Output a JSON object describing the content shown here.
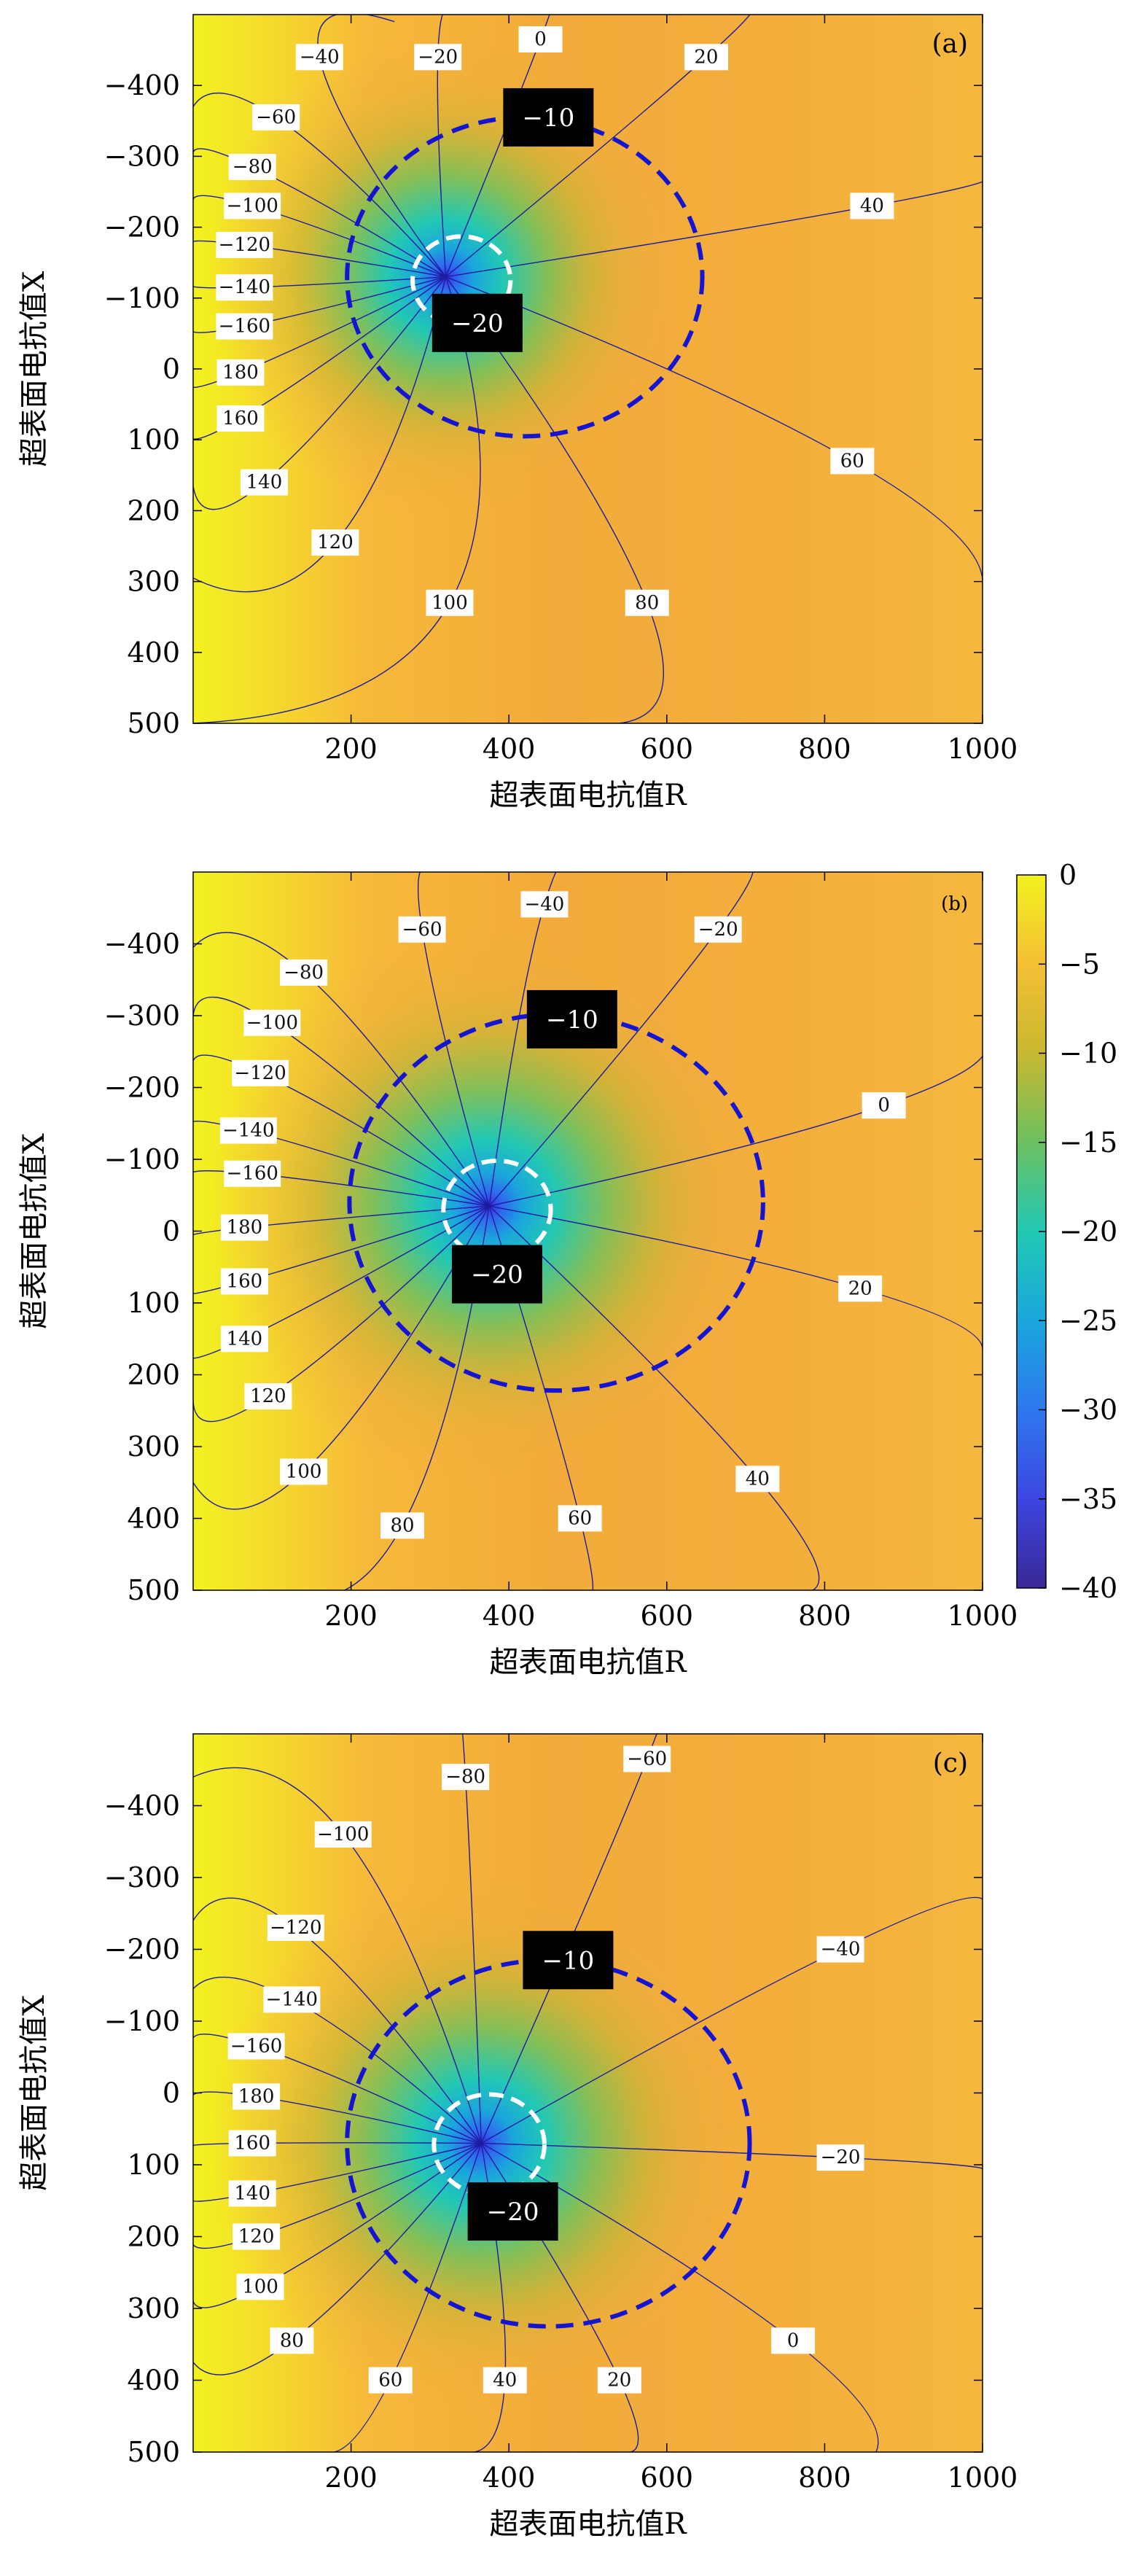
{
  "figure": {
    "panel_labels": [
      "(a)",
      "(b)",
      "(c)"
    ],
    "x_axis_label": "超表面电抗值R",
    "y_axis_label": "超表面电抗值X",
    "colors": {
      "field_high": "#f2f21e",
      "field_mid": "#f4b43a",
      "field_low_cyan": "#22c8b4",
      "field_center": "#3c28e6",
      "contour_line": "#1c1c9e",
      "dashed_blue": "#1414d2",
      "dashed_white": "#ffffff"
    }
  },
  "colorbar": {
    "range": [
      -40,
      0
    ],
    "tick_labels": [
      "0",
      "−5",
      "−10",
      "−15",
      "−20",
      "−25",
      "−30",
      "−35",
      "−40"
    ],
    "tick_values": [
      0,
      -5,
      -10,
      -15,
      -20,
      -25,
      -30,
      -35,
      -40
    ]
  },
  "chart_data": [
    {
      "type": "heatmap",
      "panel": "(a)",
      "xlim": [
        0,
        1000
      ],
      "ylim": [
        -500,
        500
      ],
      "y_inverted": true,
      "x_ticks": [
        "200",
        "400",
        "600",
        "800",
        "1000"
      ],
      "x_tick_values": [
        200,
        400,
        600,
        800,
        1000
      ],
      "y_ticks": [
        "−400",
        "−300",
        "−200",
        "−100",
        "0",
        "100",
        "200",
        "300",
        "400",
        "500"
      ],
      "y_tick_values": [
        -400,
        -300,
        -200,
        -100,
        0,
        100,
        200,
        300,
        400,
        500
      ],
      "singularity": {
        "R": 320,
        "X": -130
      },
      "circle_minus10": {
        "center_R": 420,
        "center_X": -130,
        "radius_R": 225,
        "radius_X": 225
      },
      "circle_minus20": {
        "center_R": 340,
        "center_X": -125,
        "radius_R": 62,
        "radius_X": 62
      },
      "boxed_labels": [
        {
          "text": "−10",
          "R": 450,
          "X": -355
        },
        {
          "text": "−20",
          "R": 360,
          "X": -65
        }
      ],
      "phase_lines": [
        {
          "label": "0",
          "end_R": 445,
          "end_X": -500,
          "label_R": 440,
          "label_X": -465
        },
        {
          "label": "−20",
          "end_R": 330,
          "end_X": -500,
          "label_R": 310,
          "label_X": -440
        },
        {
          "label": "−40",
          "end_R": 255,
          "end_X": -490,
          "label_R": 160,
          "label_X": -440
        },
        {
          "label": "−60",
          "end_R": 0,
          "end_X": -370,
          "label_R": 105,
          "label_X": -355
        },
        {
          "label": "−80",
          "end_R": 0,
          "end_X": -300,
          "label_R": 75,
          "label_X": -285
        },
        {
          "label": "−100",
          "end_R": 0,
          "end_X": -235,
          "label_R": 75,
          "label_X": -230
        },
        {
          "label": "−120",
          "end_R": 0,
          "end_X": -175,
          "label_R": 65,
          "label_X": -175
        },
        {
          "label": "−140",
          "end_R": 0,
          "end_X": -120,
          "label_R": 65,
          "label_X": -115
        },
        {
          "label": "−160",
          "end_R": 0,
          "end_X": -60,
          "label_R": 65,
          "label_X": -60
        },
        {
          "label": "180",
          "end_R": 0,
          "end_X": 15,
          "label_R": 60,
          "label_X": 5
        },
        {
          "label": "160",
          "end_R": 0,
          "end_X": 80,
          "label_R": 60,
          "label_X": 70
        },
        {
          "label": "140",
          "end_R": 0,
          "end_X": 165,
          "label_R": 90,
          "label_X": 160
        },
        {
          "label": "120",
          "end_R": 0,
          "end_X": 295,
          "label_R": 180,
          "label_X": 245
        },
        {
          "label": "100",
          "end_R": 0,
          "end_X": 500,
          "label_R": 325,
          "label_X": 330
        },
        {
          "label": "80",
          "end_R": 540,
          "end_X": 500,
          "label_R": 575,
          "label_X": 330
        },
        {
          "label": "60",
          "end_R": 1000,
          "end_X": 305,
          "label_R": 835,
          "label_X": 130
        },
        {
          "label": "40",
          "end_R": 1000,
          "end_X": -270,
          "label_R": 860,
          "label_X": -230
        },
        {
          "label": "20",
          "end_R": 690,
          "end_X": -500,
          "label_R": 650,
          "label_X": -440
        }
      ]
    },
    {
      "type": "heatmap",
      "panel": "(b)",
      "xlim": [
        0,
        1000
      ],
      "ylim": [
        -500,
        500
      ],
      "y_inverted": true,
      "x_ticks": [
        "200",
        "400",
        "600",
        "800",
        "1000"
      ],
      "x_tick_values": [
        200,
        400,
        600,
        800,
        1000
      ],
      "y_ticks": [
        "−400",
        "−300",
        "−200",
        "−100",
        "0",
        "100",
        "200",
        "300",
        "400",
        "500"
      ],
      "y_tick_values": [
        -400,
        -300,
        -200,
        -100,
        0,
        100,
        200,
        300,
        400,
        500
      ],
      "singularity": {
        "R": 375,
        "X": -35
      },
      "circle_minus10": {
        "center_R": 460,
        "center_X": -40,
        "radius_R": 262,
        "radius_X": 262
      },
      "circle_minus20": {
        "center_R": 385,
        "center_X": -30,
        "radius_R": 68,
        "radius_X": 68
      },
      "boxed_labels": [
        {
          "text": "−10",
          "R": 480,
          "X": -295
        },
        {
          "text": "−20",
          "R": 385,
          "X": 60
        }
      ],
      "phase_lines": [
        {
          "label": "−40",
          "end_R": 500,
          "end_X": -500,
          "label_R": 445,
          "label_X": -455
        },
        {
          "label": "−60",
          "end_R": 310,
          "end_X": -500,
          "label_R": 290,
          "label_X": -420
        },
        {
          "label": "−20",
          "end_R": 685,
          "end_X": -500,
          "label_R": 665,
          "label_X": -420
        },
        {
          "label": "−80",
          "end_R": 0,
          "end_X": -395,
          "label_R": 140,
          "label_X": -360
        },
        {
          "label": "−100",
          "end_R": 0,
          "end_X": -300,
          "label_R": 100,
          "label_X": -290
        },
        {
          "label": "−120",
          "end_R": 0,
          "end_X": -225,
          "label_R": 85,
          "label_X": -220
        },
        {
          "label": "−140",
          "end_R": 0,
          "end_X": -140,
          "label_R": 70,
          "label_X": -140
        },
        {
          "label": "−160",
          "end_R": 0,
          "end_X": -75,
          "label_R": 75,
          "label_X": -80
        },
        {
          "label": "180",
          "end_R": 0,
          "end_X": 10,
          "label_R": 65,
          "label_X": -5
        },
        {
          "label": "160",
          "end_R": 0,
          "end_X": 80,
          "label_R": 65,
          "label_X": 70
        },
        {
          "label": "140",
          "end_R": 0,
          "end_X": 160,
          "label_R": 65,
          "label_X": 150
        },
        {
          "label": "120",
          "end_R": 0,
          "end_X": 235,
          "label_R": 95,
          "label_X": 230
        },
        {
          "label": "100",
          "end_R": 0,
          "end_X": 350,
          "label_R": 140,
          "label_X": 335
        },
        {
          "label": "80",
          "end_R": 110,
          "end_X": 500,
          "label_R": 265,
          "label_X": 410
        },
        {
          "label": "60",
          "end_R": 495,
          "end_X": 500,
          "label_R": 490,
          "label_X": 400
        },
        {
          "label": "40",
          "end_R": 785,
          "end_X": 500,
          "label_R": 715,
          "label_X": 345
        },
        {
          "label": "20",
          "end_R": 1000,
          "end_X": 165,
          "label_R": 845,
          "label_X": 80
        },
        {
          "label": "0",
          "end_R": 1000,
          "end_X": -270,
          "label_R": 875,
          "label_X": -175
        }
      ]
    },
    {
      "type": "heatmap",
      "panel": "(c)",
      "xlim": [
        0,
        1000
      ],
      "ylim": [
        -500,
        500
      ],
      "y_inverted": true,
      "x_ticks": [
        "200",
        "400",
        "600",
        "800",
        "1000"
      ],
      "x_tick_values": [
        200,
        400,
        600,
        800,
        1000
      ],
      "y_ticks": [
        "−400",
        "−300",
        "−200",
        "−100",
        "0",
        "100",
        "200",
        "300",
        "400",
        "500"
      ],
      "y_tick_values": [
        -400,
        -300,
        -200,
        -100,
        0,
        100,
        200,
        300,
        400,
        500
      ],
      "singularity": {
        "R": 365,
        "X": 70
      },
      "circle_minus10": {
        "center_R": 450,
        "center_X": 70,
        "radius_R": 255,
        "radius_X": 255
      },
      "circle_minus20": {
        "center_R": 375,
        "center_X": 72,
        "radius_R": 70,
        "radius_X": 70
      },
      "boxed_labels": [
        {
          "text": "−10",
          "R": 475,
          "X": -185
        },
        {
          "text": "−20",
          "R": 405,
          "X": 165
        }
      ],
      "phase_lines": [
        {
          "label": "−80",
          "end_R": 335,
          "end_X": -500,
          "label_R": 345,
          "label_X": -440
        },
        {
          "label": "−60",
          "end_R": 570,
          "end_X": -500,
          "label_R": 575,
          "label_X": -465
        },
        {
          "label": "−100",
          "end_R": 0,
          "end_X": -440,
          "label_R": 190,
          "label_X": -360
        },
        {
          "label": "−120",
          "end_R": 0,
          "end_X": -240,
          "label_R": 130,
          "label_X": -230
        },
        {
          "label": "−140",
          "end_R": 0,
          "end_X": -145,
          "label_R": 125,
          "label_X": -130
        },
        {
          "label": "−160",
          "end_R": 0,
          "end_X": -65,
          "label_R": 80,
          "label_X": -65
        },
        {
          "label": "180",
          "end_R": 0,
          "end_X": 10,
          "label_R": 80,
          "label_X": 5
        },
        {
          "label": "160",
          "end_R": 0,
          "end_X": 75,
          "label_R": 75,
          "label_X": 70
        },
        {
          "label": "140",
          "end_R": 0,
          "end_X": 145,
          "label_R": 75,
          "label_X": 140
        },
        {
          "label": "120",
          "end_R": 0,
          "end_X": 200,
          "label_R": 80,
          "label_X": 200
        },
        {
          "label": "100",
          "end_R": 0,
          "end_X": 280,
          "label_R": 85,
          "label_X": 270
        },
        {
          "label": "80",
          "end_R": 0,
          "end_X": 375,
          "label_R": 125,
          "label_X": 345
        },
        {
          "label": "60",
          "end_R": 170,
          "end_X": 500,
          "label_R": 250,
          "label_X": 400
        },
        {
          "label": "40",
          "end_R": 345,
          "end_X": 500,
          "label_R": 395,
          "label_X": 400
        },
        {
          "label": "20",
          "end_R": 545,
          "end_X": 500,
          "label_R": 540,
          "label_X": 400
        },
        {
          "label": "0",
          "end_R": 865,
          "end_X": 500,
          "label_R": 760,
          "label_X": 345
        },
        {
          "label": "−20",
          "end_R": 1000,
          "end_X": 105,
          "label_R": 820,
          "label_X": 90
        },
        {
          "label": "−40",
          "end_R": 1000,
          "end_X": -270,
          "label_R": 820,
          "label_X": -200
        }
      ]
    }
  ]
}
